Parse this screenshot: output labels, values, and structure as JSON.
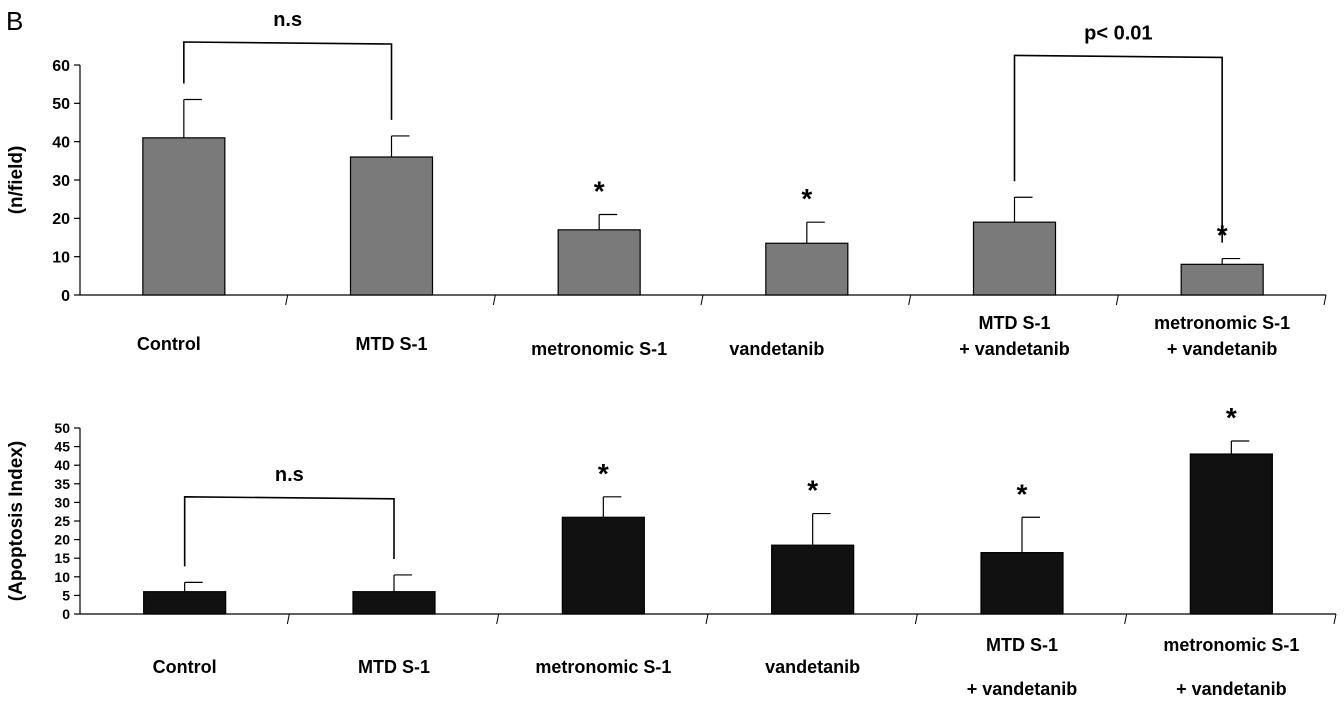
{
  "panel_label": "B",
  "chart_data": [
    {
      "type": "bar",
      "title": "",
      "xlabel": "",
      "ylabel": "(n/field)",
      "ylim": [
        0,
        60
      ],
      "yticks": [
        0,
        10,
        20,
        30,
        40,
        50,
        60
      ],
      "grid": false,
      "bar_color": "#7a7a7a",
      "categories": [
        [
          "Control"
        ],
        [
          "MTD S-1"
        ],
        [
          "metronomic S-1"
        ],
        [
          "vandetanib"
        ],
        [
          "MTD S-1",
          "+ vandetanib"
        ],
        [
          "metronomic S-1",
          "+ vandetanib"
        ]
      ],
      "values": [
        41,
        36,
        17,
        13.5,
        19,
        8
      ],
      "errors": [
        10,
        5.5,
        4,
        5.5,
        6.5,
        1.5
      ],
      "significance": [
        "",
        "",
        "*",
        "*",
        "",
        "*"
      ],
      "brackets": [
        {
          "from": 0,
          "to": 1,
          "label": "n.s",
          "y": 66
        },
        {
          "from": 4,
          "to": 5,
          "label": "p< 0.01",
          "y": 62.5
        }
      ]
    },
    {
      "type": "bar",
      "title": "",
      "xlabel": "",
      "ylabel": "(Apoptosis Index)",
      "ylim": [
        0,
        50
      ],
      "yticks": [
        0,
        5,
        10,
        15,
        20,
        25,
        30,
        35,
        40,
        45,
        50
      ],
      "grid": false,
      "bar_color": "#111111",
      "categories": [
        [
          "Control"
        ],
        [
          "MTD S-1"
        ],
        [
          "metronomic S-1"
        ],
        [
          "vandetanib"
        ],
        [
          "MTD S-1",
          "+ vandetanib"
        ],
        [
          "metronomic S-1",
          "+ vandetanib"
        ]
      ],
      "values": [
        6,
        6,
        26,
        18.5,
        16.5,
        43
      ],
      "errors": [
        2.5,
        4.5,
        5.5,
        8.5,
        9.5,
        3.5
      ],
      "significance": [
        "",
        "",
        "*",
        "*",
        "*",
        "*"
      ],
      "brackets": [
        {
          "from": 0,
          "to": 1,
          "label": "n.s",
          "y": 31.5
        }
      ]
    }
  ]
}
